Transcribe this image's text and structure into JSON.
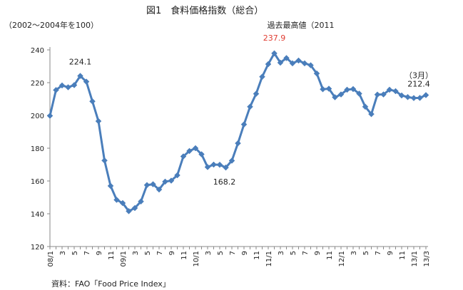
{
  "chart_data": {
    "type": "line",
    "title": "図1　食料価格指数（総合）",
    "ylabel": "（2002～2004年を100）",
    "source": "資料：FAO「Food Price Index」",
    "ylim": [
      120,
      240
    ],
    "yticks": [
      120,
      140,
      160,
      180,
      200,
      220,
      240
    ],
    "grid": false,
    "legend": "none",
    "color": "#4a7ebb",
    "categories": [
      "08/1",
      "2",
      "3",
      "4",
      "5",
      "6",
      "7",
      "8",
      "9",
      "10",
      "11",
      "12",
      "09/1",
      "2",
      "3",
      "4",
      "5",
      "6",
      "7",
      "8",
      "9",
      "10",
      "11",
      "12",
      "10/1",
      "2",
      "3",
      "4",
      "5",
      "6",
      "7",
      "8",
      "9",
      "10",
      "11",
      "12",
      "11/1",
      "2",
      "3",
      "4",
      "5",
      "6",
      "7",
      "8",
      "9",
      "10",
      "11",
      "12",
      "12/1",
      "2",
      "3",
      "4",
      "5",
      "6",
      "7",
      "8",
      "9",
      "10",
      "11",
      "12",
      "13/1",
      "2",
      "3"
    ],
    "xtick_labels": [
      "08/1",
      "3",
      "5",
      "7",
      "9",
      "11",
      "09/1",
      "3",
      "5",
      "7",
      "9",
      "11",
      "10/1",
      "3",
      "5",
      "7",
      "9",
      "11",
      "11/1",
      "3",
      "5",
      "7",
      "9",
      "11",
      "12/1",
      "3",
      "5",
      "7",
      "9",
      "11",
      "13/1",
      "13/3"
    ],
    "values": [
      199.8,
      215.5,
      218.3,
      217.2,
      218.5,
      224.1,
      220.6,
      208.6,
      196.5,
      172.5,
      157.0,
      148.5,
      146.5,
      141.6,
      143.5,
      147.5,
      157.5,
      158.0,
      154.8,
      159.6,
      160.2,
      163.5,
      175.0,
      178.3,
      180.0,
      176.3,
      168.5,
      170.0,
      169.9,
      168.2,
      172.4,
      183.0,
      194.5,
      205.3,
      213.2,
      223.6,
      231.3,
      237.9,
      232.2,
      235.0,
      231.8,
      233.5,
      231.8,
      230.6,
      225.6,
      216.0,
      216.3,
      211.1,
      212.8,
      215.7,
      216.1,
      213.3,
      205.3,
      200.8,
      212.7,
      212.8,
      215.7,
      214.8,
      212.2,
      211.2,
      210.6,
      210.7,
      212.4
    ],
    "annotations": [
      {
        "text": "224.1",
        "color": "#222222"
      },
      {
        "text": "237.9",
        "color": "#e03c31"
      },
      {
        "text": "過去最高値（2011",
        "color": "#222222"
      },
      {
        "text": "168.2",
        "color": "#222222"
      },
      {
        "text": "（3月）",
        "color": "#222222"
      },
      {
        "text": "212.4",
        "color": "#222222"
      }
    ]
  }
}
